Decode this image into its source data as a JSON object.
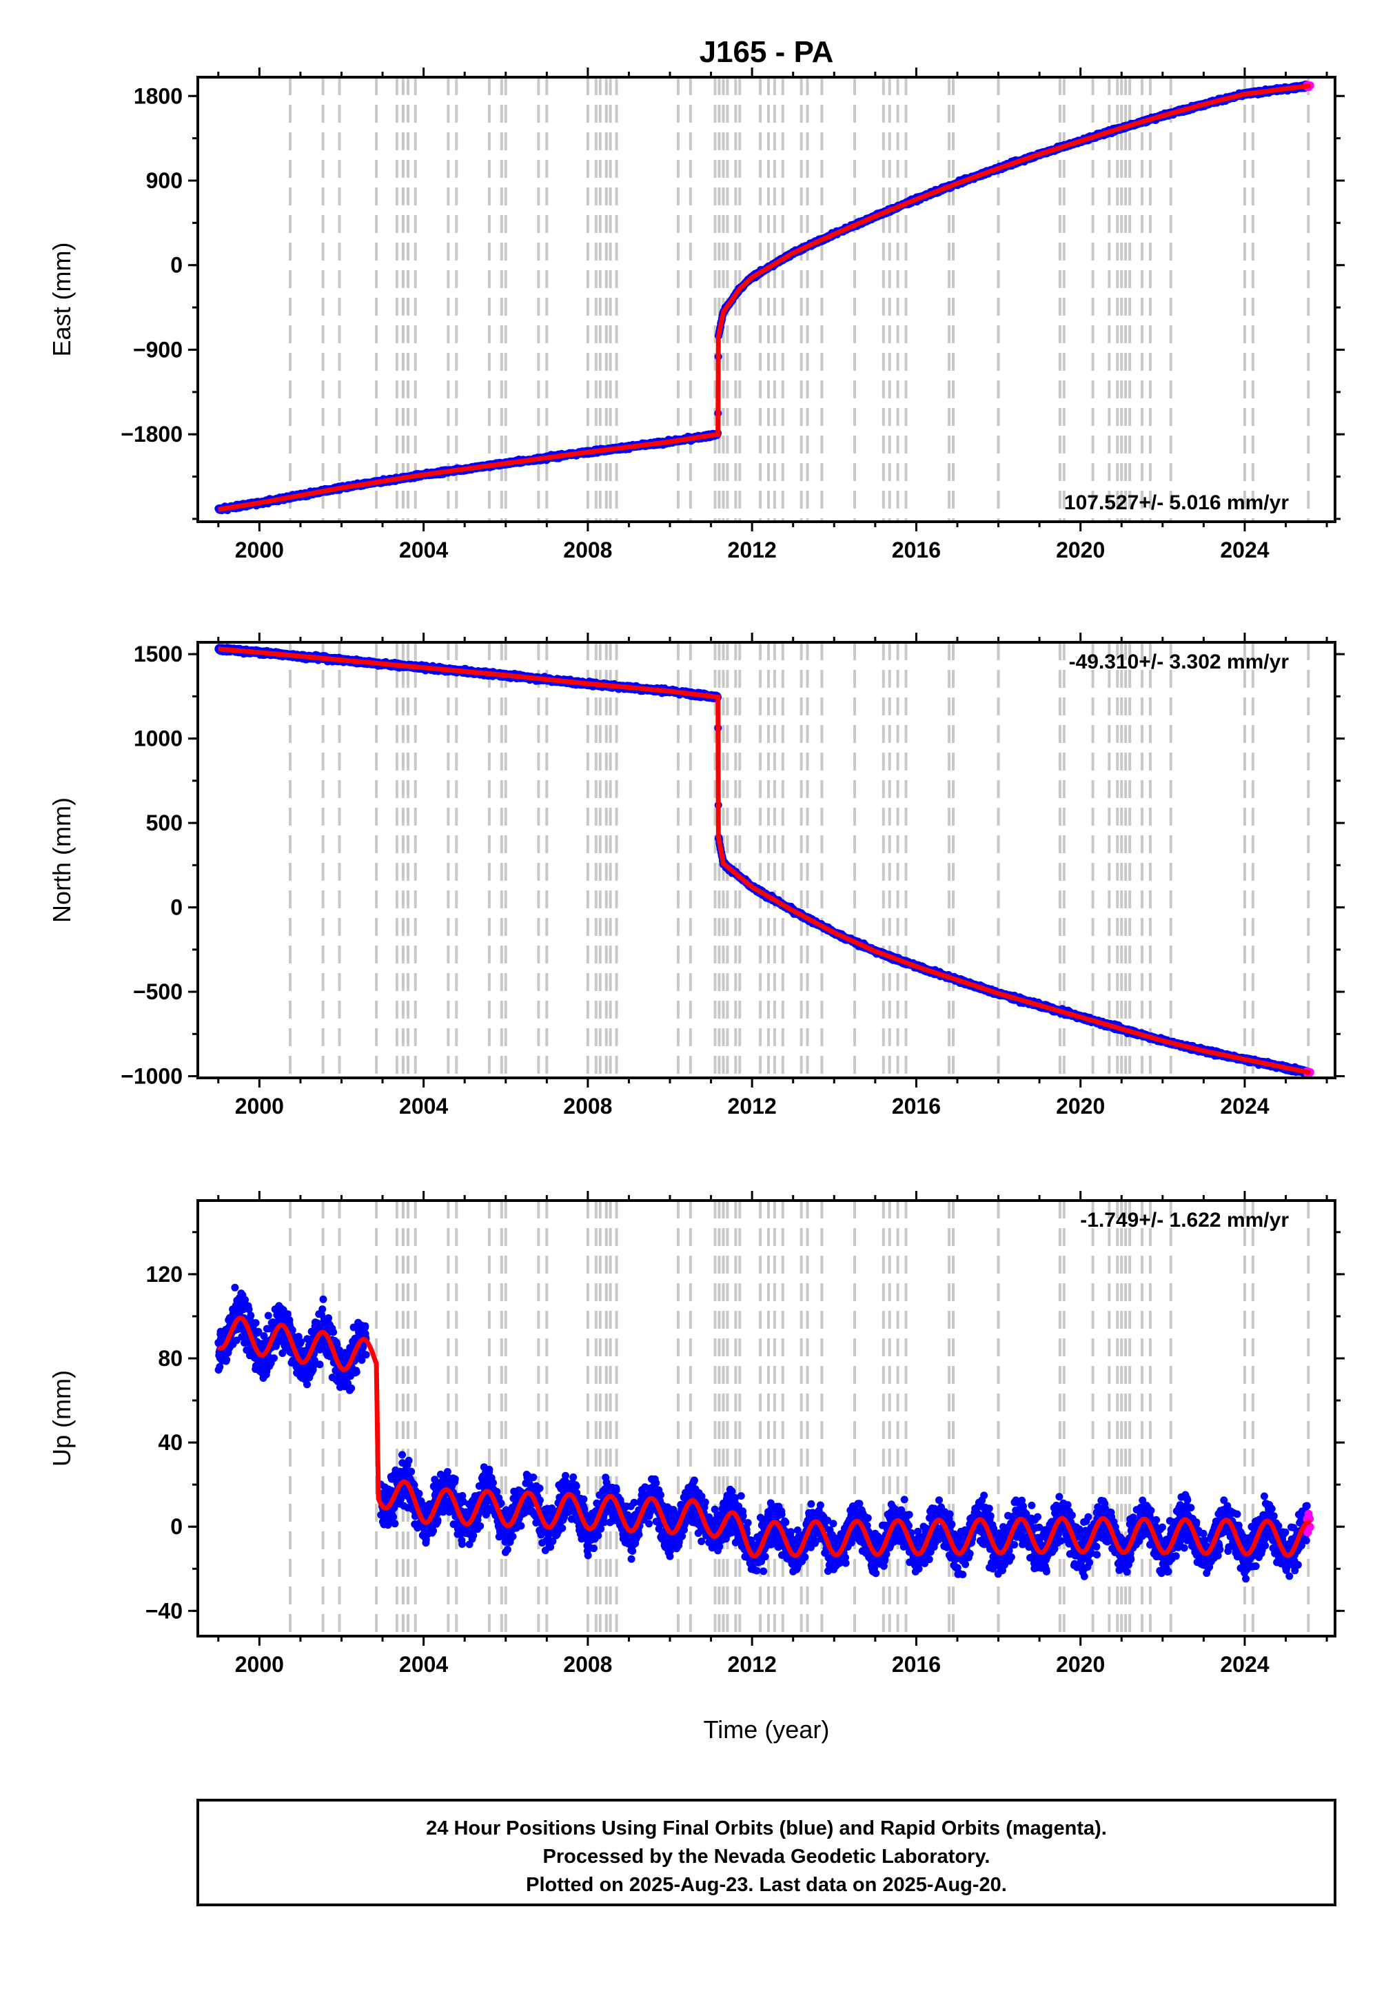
{
  "chart_data": {
    "type": "scatter",
    "title": "J165 - PA",
    "xlabel": "Time (year)",
    "x_ticks": [
      2000,
      2004,
      2008,
      2012,
      2016,
      2020,
      2024
    ],
    "xlim": [
      1998.5,
      2026.2
    ],
    "colors": {
      "final": "#0000ff",
      "rapid": "#ff00ff",
      "model": "#ff0000",
      "event": "#c8c8c8"
    },
    "event_lines": [
      2000.75,
      2001.55,
      2001.95,
      2002.85,
      2003.35,
      2003.5,
      2003.62,
      2003.8,
      2004.6,
      2004.8,
      2005.6,
      2005.9,
      2006.0,
      2006.8,
      2007.0,
      2008.0,
      2008.2,
      2008.3,
      2008.45,
      2008.55,
      2008.7,
      2010.2,
      2010.5,
      2011.1,
      2011.2,
      2011.3,
      2011.4,
      2011.6,
      2011.7,
      2012.2,
      2012.4,
      2012.55,
      2012.75,
      2013.2,
      2013.35,
      2013.7,
      2014.5,
      2015.2,
      2015.35,
      2015.55,
      2015.75,
      2016.8,
      2016.9,
      2018.0,
      2019.5,
      2019.6,
      2020.3,
      2020.7,
      2020.9,
      2021.0,
      2021.1,
      2021.2,
      2021.5,
      2021.7,
      2022.2,
      2024.0,
      2024.2,
      2025.55
    ],
    "note_lines": [
      "24 Hour Positions Using Final Orbits (blue) and Rapid Orbits (magenta).",
      "Processed by the Nevada Geodetic Laboratory.",
      "Plotted on 2025-Aug-23. Last data on 2025-Aug-20."
    ],
    "panels": [
      {
        "key": "east",
        "ylabel": "East (mm)",
        "ylim": [
          -2730,
          2000
        ],
        "y_ticks": [
          1800,
          900,
          0,
          -900,
          -1800
        ],
        "rate": "107.527+/- 5.016 mm/yr",
        "rate_position": "bottom-right",
        "model": [
          [
            1999.0,
            -2600
          ],
          [
            2000.0,
            -2530
          ],
          [
            2002.0,
            -2370
          ],
          [
            2004.0,
            -2230
          ],
          [
            2006.0,
            -2110
          ],
          [
            2008.0,
            -1990
          ],
          [
            2010.0,
            -1880
          ],
          [
            2011.17,
            -1800
          ],
          [
            2011.18,
            -760
          ],
          [
            2011.3,
            -500
          ],
          [
            2011.7,
            -250
          ],
          [
            2012.0,
            -130
          ],
          [
            2013.0,
            130
          ],
          [
            2014.0,
            330
          ],
          [
            2015.0,
            520
          ],
          [
            2016.0,
            700
          ],
          [
            2017.0,
            870
          ],
          [
            2018.0,
            1030
          ],
          [
            2019.0,
            1180
          ],
          [
            2020.0,
            1320
          ],
          [
            2021.0,
            1460
          ],
          [
            2022.0,
            1590
          ],
          [
            2023.0,
            1710
          ],
          [
            2024.0,
            1820
          ],
          [
            2025.6,
            1910
          ]
        ],
        "noise": 18
      },
      {
        "key": "north",
        "ylabel": "North (mm)",
        "ylim": [
          -1010,
          1570
        ],
        "y_ticks": [
          1500,
          1000,
          500,
          0,
          -500,
          -1000
        ],
        "rate": "-49.310+/- 3.302 mm/yr",
        "rate_position": "top-right",
        "model": [
          [
            1999.0,
            1530
          ],
          [
            2000.0,
            1510
          ],
          [
            2002.0,
            1465
          ],
          [
            2004.0,
            1420
          ],
          [
            2006.0,
            1375
          ],
          [
            2008.0,
            1325
          ],
          [
            2010.0,
            1280
          ],
          [
            2011.17,
            1245
          ],
          [
            2011.18,
            420
          ],
          [
            2011.3,
            260
          ],
          [
            2011.7,
            180
          ],
          [
            2012.0,
            120
          ],
          [
            2013.0,
            -20
          ],
          [
            2014.0,
            -150
          ],
          [
            2015.0,
            -260
          ],
          [
            2016.0,
            -350
          ],
          [
            2017.0,
            -430
          ],
          [
            2018.0,
            -510
          ],
          [
            2019.0,
            -580
          ],
          [
            2020.0,
            -650
          ],
          [
            2021.0,
            -720
          ],
          [
            2022.0,
            -790
          ],
          [
            2023.0,
            -850
          ],
          [
            2024.0,
            -900
          ],
          [
            2025.6,
            -980
          ]
        ],
        "noise": 12
      },
      {
        "key": "up",
        "ylabel": "Up (mm)",
        "ylim": [
          -52,
          155
        ],
        "y_ticks": [
          120,
          80,
          40,
          0,
          -40
        ],
        "rate": "-1.749+/- 1.622 mm/yr",
        "rate_position": "top-right",
        "seasonal_amplitude": 8,
        "model": [
          [
            1999.0,
            93
          ],
          [
            2002.85,
            80
          ],
          [
            2002.9,
            18
          ],
          [
            2004.0,
            10
          ],
          [
            2008.0,
            7
          ],
          [
            2011.0,
            4
          ],
          [
            2012.0,
            -6
          ],
          [
            2016.0,
            -5
          ],
          [
            2020.0,
            -4
          ],
          [
            2024.0,
            -5
          ],
          [
            2025.6,
            -6
          ]
        ],
        "noise": 10
      }
    ]
  }
}
